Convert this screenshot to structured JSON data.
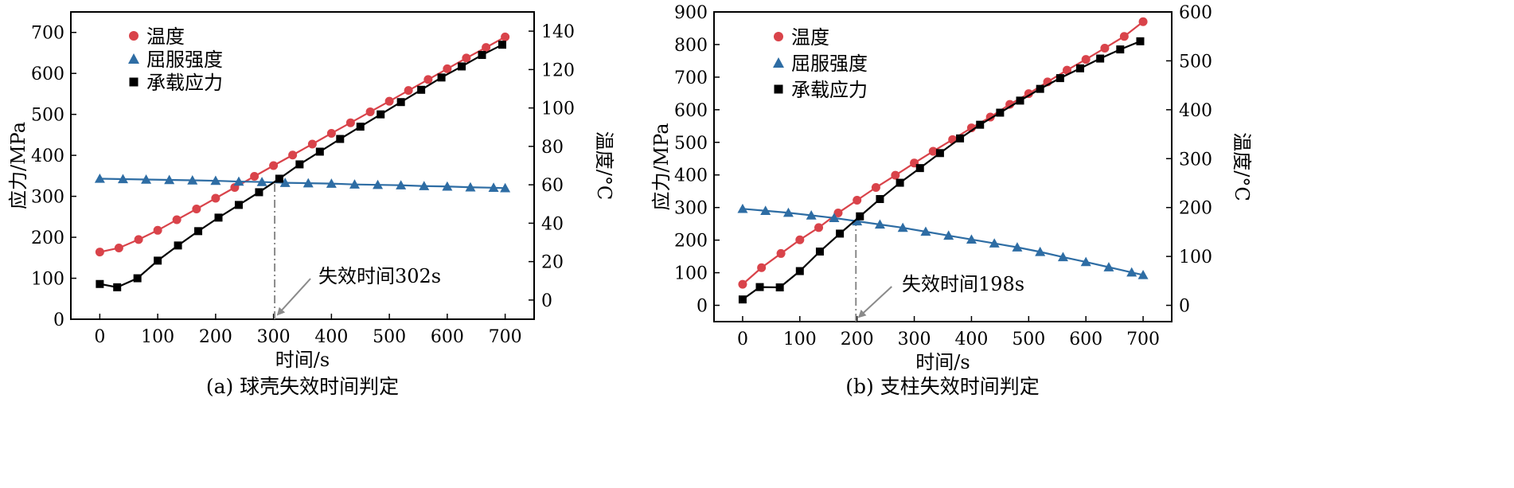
{
  "chart_data": [
    {
      "type": "line",
      "caption": "(a) 球壳失效时间判定",
      "xlabel": "时间/s",
      "ylabel_left": "应力/MPa",
      "ylabel_right": "温度/°C",
      "xlim": [
        -50,
        750
      ],
      "ylim_left": [
        0,
        750
      ],
      "ylim_right": [
        -10,
        150
      ],
      "xticks": [
        0,
        100,
        200,
        300,
        400,
        500,
        600,
        700
      ],
      "yticks_left": [
        0,
        100,
        200,
        300,
        400,
        500,
        600,
        700
      ],
      "yticks_right": [
        0,
        20,
        40,
        60,
        80,
        100,
        120,
        140
      ],
      "annotation": {
        "text": "失效时间302s",
        "x": 302
      },
      "series": [
        {
          "name": "温度",
          "axis": "right",
          "color": "#d9434a",
          "marker": "circle",
          "x": [
            0,
            33,
            67,
            100,
            133,
            167,
            200,
            233,
            267,
            300,
            333,
            367,
            400,
            433,
            467,
            500,
            533,
            567,
            600,
            633,
            667,
            700
          ],
          "y": [
            25,
            27.1,
            31.5,
            36.3,
            41.8,
            47.4,
            53.0,
            58.6,
            64.4,
            70.0,
            75.5,
            81.2,
            86.8,
            92.3,
            98.0,
            103.5,
            109.1,
            114.8,
            120.4,
            126.0,
            131.5,
            137.0
          ]
        },
        {
          "name": "屈服强度",
          "axis": "left",
          "color": "#2e6da4",
          "marker": "triangle",
          "x": [
            0,
            40,
            80,
            120,
            160,
            200,
            240,
            280,
            320,
            360,
            400,
            440,
            480,
            520,
            560,
            600,
            640,
            680,
            700
          ],
          "y": [
            343,
            342,
            341,
            340,
            339,
            338,
            336,
            335,
            333,
            332,
            331,
            329,
            328,
            327,
            325,
            324,
            322,
            321,
            320
          ]
        },
        {
          "name": "承载应力",
          "axis": "left",
          "color": "#000000",
          "marker": "square",
          "x": [
            0,
            30,
            65,
            100,
            135,
            170,
            205,
            240,
            275,
            310,
            345,
            380,
            415,
            450,
            485,
            520,
            555,
            590,
            625,
            660,
            695
          ],
          "y": [
            86,
            78,
            100,
            143,
            180,
            215,
            248,
            279,
            310,
            343,
            378,
            409,
            440,
            470,
            500,
            530,
            560,
            590,
            617,
            645,
            670
          ]
        }
      ]
    },
    {
      "type": "line",
      "caption": "(b) 支柱失效时间判定",
      "xlabel": "时间/s",
      "ylabel_left": "应力/MPa",
      "ylabel_right": "温度/°C",
      "xlim": [
        -50,
        750
      ],
      "ylim_left": [
        -50,
        900
      ],
      "ylim_right": [
        -33.3,
        600
      ],
      "xticks": [
        0,
        100,
        200,
        300,
        400,
        500,
        600,
        700
      ],
      "yticks_left": [
        0,
        100,
        200,
        300,
        400,
        500,
        600,
        700,
        800,
        900
      ],
      "yticks_right": [
        0,
        100,
        200,
        300,
        400,
        500,
        600
      ],
      "annotation": {
        "text": "失效时间198s",
        "x": 198
      },
      "series": [
        {
          "name": "温度",
          "axis": "right",
          "color": "#d9434a",
          "marker": "circle",
          "x": [
            0,
            33,
            67,
            100,
            133,
            167,
            200,
            233,
            267,
            300,
            333,
            367,
            400,
            433,
            467,
            500,
            533,
            567,
            600,
            633,
            667,
            700
          ],
          "y": [
            43,
            77,
            106,
            134,
            159,
            189,
            215,
            241,
            266,
            291,
            315,
            339,
            363,
            385,
            411,
            433,
            457,
            481,
            503,
            526,
            550,
            580
          ]
        },
        {
          "name": "屈服强度",
          "axis": "left",
          "color": "#2e6da4",
          "marker": "triangle",
          "x": [
            0,
            40,
            80,
            120,
            160,
            200,
            240,
            280,
            320,
            360,
            400,
            440,
            480,
            520,
            560,
            600,
            640,
            680,
            700
          ],
          "y": [
            296,
            290,
            284,
            276,
            268,
            258,
            248,
            238,
            226,
            214,
            202,
            190,
            178,
            164,
            148,
            133,
            117,
            101,
            93
          ]
        },
        {
          "name": "承载应力",
          "axis": "left",
          "color": "#000000",
          "marker": "square",
          "x": [
            0,
            30,
            65,
            100,
            135,
            170,
            205,
            240,
            275,
            310,
            345,
            380,
            415,
            450,
            485,
            520,
            555,
            590,
            625,
            660,
            695
          ],
          "y": [
            18,
            56,
            55,
            105,
            165,
            220,
            273,
            326,
            376,
            421,
            467,
            512,
            554,
            591,
            628,
            664,
            697,
            727,
            757,
            785,
            810
          ]
        }
      ]
    }
  ]
}
